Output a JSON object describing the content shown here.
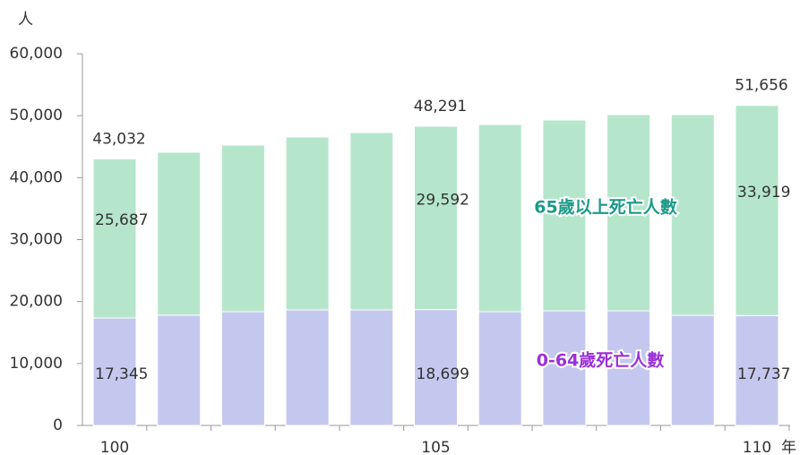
{
  "chart_data": {
    "type": "stacked_bar",
    "y_unit": "人",
    "x_unit": "年",
    "categories": [
      "100",
      null,
      null,
      null,
      null,
      "105",
      null,
      null,
      null,
      null,
      "110"
    ],
    "series": [
      {
        "name": "0-64歲死亡人數",
        "color": "#c5c8ee",
        "label_color": "#9b30d9",
        "values": [
          17345,
          17800,
          18360,
          18650,
          18650,
          18699,
          18360,
          18500,
          18500,
          17780,
          17737
        ],
        "value_labels": [
          "17,345",
          null,
          null,
          null,
          null,
          "18,699",
          null,
          null,
          null,
          null,
          "17,737"
        ]
      },
      {
        "name": "65歲以上死亡人數",
        "color": "#b5e6cc",
        "label_color": "#1a9a86",
        "values": [
          25687,
          26300,
          26890,
          27900,
          28630,
          29592,
          30220,
          30800,
          31670,
          32390,
          33919
        ],
        "value_labels": [
          "25,687",
          null,
          null,
          null,
          null,
          "29,592",
          null,
          null,
          null,
          null,
          "33,919"
        ]
      }
    ],
    "totals": [
      43032,
      null,
      null,
      null,
      null,
      48291,
      null,
      null,
      null,
      null,
      51656
    ],
    "total_labels": [
      "43,032",
      null,
      null,
      null,
      null,
      "48,291",
      null,
      null,
      null,
      null,
      "51,656"
    ],
    "ylim": [
      0,
      60000
    ],
    "yticks": [
      0,
      {
        "value": 10000,
        "label": "10,000"
      },
      {
        "value": 20000,
        "label": "20,000"
      },
      {
        "value": 30000,
        "label": "30,000"
      },
      {
        "value": 40000,
        "label": "40,000"
      },
      {
        "value": 50000,
        "label": "50,000"
      },
      {
        "value": 60000,
        "label": "60,000"
      }
    ]
  }
}
